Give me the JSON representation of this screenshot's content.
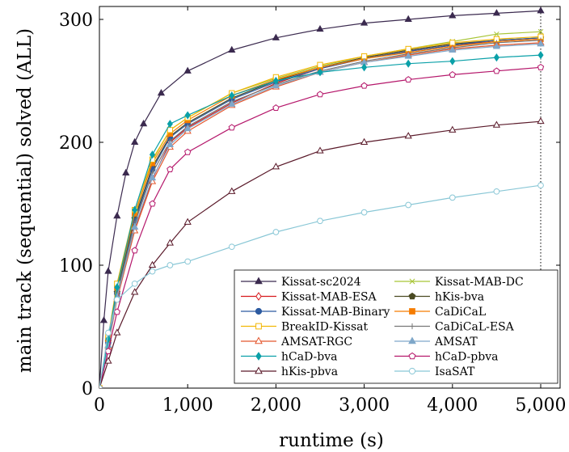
{
  "chart_data": {
    "type": "line",
    "xlabel": "runtime (s)",
    "ylabel": "main track (sequential) solved (ALL)",
    "xlim": [
      0,
      5000
    ],
    "ylim": [
      0,
      310
    ],
    "x_ticks": [
      0,
      1000,
      2000,
      3000,
      4000,
      5000
    ],
    "x_tick_labels": [
      "0",
      "1,000",
      "2,000",
      "3,000",
      "4,000",
      "5,000"
    ],
    "y_ticks": [
      0,
      100,
      200,
      300
    ],
    "y_tick_labels": [
      "0",
      "100",
      "200",
      "300"
    ],
    "timeout_line_x": 5000,
    "legend_position": "bottom-right",
    "series": [
      {
        "name": "Kissat-sc2024",
        "color": "#3b2a4f",
        "marker": "triangle-filled",
        "points": [
          [
            0,
            0
          ],
          [
            50,
            55
          ],
          [
            100,
            95
          ],
          [
            200,
            140
          ],
          [
            300,
            175
          ],
          [
            400,
            200
          ],
          [
            500,
            215
          ],
          [
            700,
            240
          ],
          [
            1000,
            258
          ],
          [
            1500,
            275
          ],
          [
            2000,
            285
          ],
          [
            2500,
            292
          ],
          [
            3000,
            297
          ],
          [
            3500,
            300
          ],
          [
            4000,
            303
          ],
          [
            4500,
            305
          ],
          [
            5000,
            307
          ]
        ]
      },
      {
        "name": "Kissat-MAB-DC",
        "color": "#a8c536",
        "marker": "x",
        "points": [
          [
            0,
            0
          ],
          [
            100,
            40
          ],
          [
            200,
            80
          ],
          [
            400,
            140
          ],
          [
            600,
            185
          ],
          [
            800,
            210
          ],
          [
            1000,
            220
          ],
          [
            1500,
            240
          ],
          [
            2000,
            252
          ],
          [
            2500,
            262
          ],
          [
            3000,
            270
          ],
          [
            3500,
            276
          ],
          [
            4000,
            282
          ],
          [
            4500,
            288
          ],
          [
            5000,
            290
          ]
        ]
      },
      {
        "name": "Kissat-MAB-ESA",
        "color": "#d7191c",
        "marker": "diamond-open",
        "points": [
          [
            0,
            0
          ],
          [
            100,
            35
          ],
          [
            200,
            75
          ],
          [
            400,
            130
          ],
          [
            600,
            170
          ],
          [
            800,
            200
          ],
          [
            1000,
            212
          ],
          [
            1500,
            232
          ],
          [
            2000,
            248
          ],
          [
            2500,
            260
          ],
          [
            3000,
            268
          ],
          [
            3500,
            274
          ],
          [
            4000,
            279
          ],
          [
            4500,
            282
          ],
          [
            5000,
            284
          ]
        ]
      },
      {
        "name": "hKis-bva",
        "color": "#4a4a22",
        "marker": "pentagon-filled",
        "points": [
          [
            0,
            0
          ],
          [
            100,
            38
          ],
          [
            200,
            78
          ],
          [
            400,
            138
          ],
          [
            600,
            180
          ],
          [
            800,
            205
          ],
          [
            1000,
            216
          ],
          [
            1500,
            236
          ],
          [
            2000,
            250
          ],
          [
            2500,
            261
          ],
          [
            3000,
            269
          ],
          [
            3500,
            275
          ],
          [
            4000,
            280
          ],
          [
            4500,
            283
          ],
          [
            5000,
            285
          ]
        ]
      },
      {
        "name": "Kissat-MAB-Binary",
        "color": "#2c5aa0",
        "marker": "circle-filled",
        "points": [
          [
            0,
            0
          ],
          [
            100,
            37
          ],
          [
            200,
            77
          ],
          [
            400,
            136
          ],
          [
            600,
            178
          ],
          [
            800,
            204
          ],
          [
            1000,
            215
          ],
          [
            1500,
            235
          ],
          [
            2000,
            249
          ],
          [
            2500,
            260
          ],
          [
            3000,
            268
          ],
          [
            3500,
            274
          ],
          [
            4000,
            279
          ],
          [
            4500,
            283
          ],
          [
            5000,
            285
          ]
        ]
      },
      {
        "name": "CaDiCaL",
        "color": "#f57c00",
        "marker": "square-filled",
        "points": [
          [
            0,
            0
          ],
          [
            100,
            40
          ],
          [
            200,
            82
          ],
          [
            400,
            142
          ],
          [
            600,
            183
          ],
          [
            800,
            207
          ],
          [
            1000,
            218
          ],
          [
            1500,
            238
          ],
          [
            2000,
            251
          ],
          [
            2500,
            261
          ],
          [
            3000,
            268
          ],
          [
            3500,
            273
          ],
          [
            4000,
            278
          ],
          [
            4500,
            282
          ],
          [
            5000,
            284
          ]
        ]
      },
      {
        "name": "BreakID-Kissat",
        "color": "#f2b705",
        "marker": "square-open",
        "points": [
          [
            0,
            0
          ],
          [
            100,
            42
          ],
          [
            200,
            85
          ],
          [
            400,
            145
          ],
          [
            600,
            186
          ],
          [
            800,
            210
          ],
          [
            1000,
            220
          ],
          [
            1500,
            240
          ],
          [
            2000,
            253
          ],
          [
            2500,
            263
          ],
          [
            3000,
            270
          ],
          [
            3500,
            276
          ],
          [
            4000,
            281
          ],
          [
            4500,
            284
          ],
          [
            5000,
            286
          ]
        ]
      },
      {
        "name": "CaDiCaL-ESA",
        "color": "#777777",
        "marker": "plus",
        "points": [
          [
            0,
            0
          ],
          [
            100,
            36
          ],
          [
            200,
            76
          ],
          [
            400,
            134
          ],
          [
            600,
            175
          ],
          [
            800,
            201
          ],
          [
            1000,
            213
          ],
          [
            1500,
            233
          ],
          [
            2000,
            247
          ],
          [
            2500,
            258
          ],
          [
            3000,
            266
          ],
          [
            3500,
            272
          ],
          [
            4000,
            277
          ],
          [
            4500,
            281
          ],
          [
            5000,
            283
          ]
        ]
      },
      {
        "name": "AMSAT-RGC",
        "color": "#e4572e",
        "marker": "triangle-open",
        "points": [
          [
            0,
            0
          ],
          [
            100,
            34
          ],
          [
            200,
            72
          ],
          [
            400,
            128
          ],
          [
            600,
            168
          ],
          [
            800,
            196
          ],
          [
            1000,
            209
          ],
          [
            1500,
            230
          ],
          [
            2000,
            245
          ],
          [
            2500,
            257
          ],
          [
            3000,
            265
          ],
          [
            3500,
            271
          ],
          [
            4000,
            276
          ],
          [
            4500,
            279
          ],
          [
            5000,
            281
          ]
        ]
      },
      {
        "name": "AMSAT",
        "color": "#7fa7c9",
        "marker": "triangle-filled",
        "points": [
          [
            0,
            0
          ],
          [
            100,
            35
          ],
          [
            200,
            74
          ],
          [
            400,
            131
          ],
          [
            600,
            171
          ],
          [
            800,
            198
          ],
          [
            1000,
            211
          ],
          [
            1500,
            231
          ],
          [
            2000,
            246
          ],
          [
            2500,
            257
          ],
          [
            3000,
            265
          ],
          [
            3500,
            270
          ],
          [
            4000,
            275
          ],
          [
            4500,
            278
          ],
          [
            5000,
            280
          ]
        ]
      },
      {
        "name": "hCaD-bva",
        "color": "#0aa0a8",
        "marker": "diamond-filled",
        "points": [
          [
            0,
            0
          ],
          [
            100,
            40
          ],
          [
            200,
            82
          ],
          [
            400,
            145
          ],
          [
            600,
            190
          ],
          [
            800,
            215
          ],
          [
            1000,
            222
          ],
          [
            1500,
            238
          ],
          [
            2000,
            250
          ],
          [
            2500,
            257
          ],
          [
            3000,
            261
          ],
          [
            3500,
            264
          ],
          [
            4000,
            266
          ],
          [
            4500,
            269
          ],
          [
            5000,
            271
          ]
        ]
      },
      {
        "name": "hCaD-pbva",
        "color": "#b5176b",
        "marker": "pentagon-open",
        "points": [
          [
            0,
            0
          ],
          [
            100,
            30
          ],
          [
            200,
            62
          ],
          [
            400,
            112
          ],
          [
            600,
            150
          ],
          [
            800,
            178
          ],
          [
            1000,
            192
          ],
          [
            1500,
            212
          ],
          [
            2000,
            228
          ],
          [
            2500,
            239
          ],
          [
            3000,
            246
          ],
          [
            3500,
            251
          ],
          [
            4000,
            255
          ],
          [
            4500,
            258
          ],
          [
            5000,
            261
          ]
        ]
      },
      {
        "name": "hKis-pbva",
        "color": "#5a1a2a",
        "marker": "triangle-open",
        "points": [
          [
            0,
            0
          ],
          [
            100,
            22
          ],
          [
            200,
            45
          ],
          [
            400,
            78
          ],
          [
            600,
            100
          ],
          [
            800,
            118
          ],
          [
            1000,
            135
          ],
          [
            1500,
            160
          ],
          [
            2000,
            180
          ],
          [
            2500,
            193
          ],
          [
            3000,
            200
          ],
          [
            3500,
            205
          ],
          [
            4000,
            210
          ],
          [
            4500,
            214
          ],
          [
            5000,
            217
          ]
        ]
      },
      {
        "name": "IsaSAT",
        "color": "#89c7d6",
        "marker": "circle-open",
        "points": [
          [
            0,
            0
          ],
          [
            100,
            45
          ],
          [
            200,
            72
          ],
          [
            400,
            85
          ],
          [
            600,
            95
          ],
          [
            800,
            100
          ],
          [
            1000,
            103
          ],
          [
            1500,
            115
          ],
          [
            2000,
            127
          ],
          [
            2500,
            136
          ],
          [
            3000,
            143
          ],
          [
            3500,
            149
          ],
          [
            4000,
            155
          ],
          [
            4500,
            160
          ],
          [
            5000,
            165
          ]
        ]
      }
    ]
  }
}
